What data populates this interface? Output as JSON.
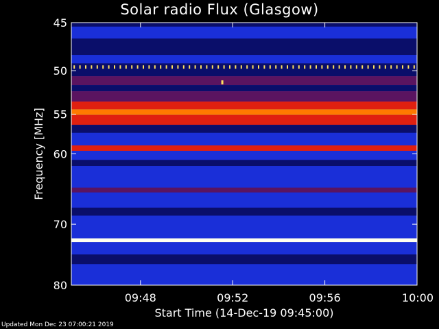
{
  "page": {
    "footer": "Updated Mon Dec 23 07:00:21 2019"
  },
  "chart_data": {
    "type": "heatmap",
    "title": "Solar radio Flux (Glasgow)",
    "xlabel": "Start Time (14-Dec-19 09:45:00)",
    "ylabel": "Frequency [MHz]",
    "xlim_minutes_after_0945": [
      0,
      15
    ],
    "ylim_mhz": [
      45,
      80
    ],
    "y_scale": "log",
    "x_ticks": [
      {
        "minutes": 3,
        "label": "09:48"
      },
      {
        "minutes": 7,
        "label": "09:52"
      },
      {
        "minutes": 11,
        "label": "09:56"
      },
      {
        "minutes": 15,
        "label": "10:00"
      }
    ],
    "y_ticks": [
      {
        "mhz": 45,
        "label": "45"
      },
      {
        "mhz": 50,
        "label": "50"
      },
      {
        "mhz": 55,
        "label": "55"
      },
      {
        "mhz": 60,
        "label": "60"
      },
      {
        "mhz": 70,
        "label": "70"
      },
      {
        "mhz": 80,
        "label": "80"
      }
    ],
    "colors": {
      "background": "#1a2fd8",
      "dark": "#0a0e6a",
      "purple": "#5a1460",
      "red": "#e02010",
      "orange": "#ff7a00",
      "yellow": "#ffe060",
      "white": "#fffff0"
    },
    "bands": [
      {
        "f0": 45.0,
        "f1": 45.4,
        "color": "dark"
      },
      {
        "f0": 45.4,
        "f1": 46.6,
        "color": "background"
      },
      {
        "f0": 46.6,
        "f1": 48.3,
        "color": "dark"
      },
      {
        "f0": 48.3,
        "f1": 49.2,
        "color": "background"
      },
      {
        "f0": 49.2,
        "f1": 50.6,
        "color": "dark"
      },
      {
        "f0": 50.6,
        "f1": 51.6,
        "color": "purple"
      },
      {
        "f0": 51.6,
        "f1": 52.3,
        "color": "dark"
      },
      {
        "f0": 52.3,
        "f1": 53.5,
        "color": "purple"
      },
      {
        "f0": 53.5,
        "f1": 54.4,
        "color": "red"
      },
      {
        "f0": 54.4,
        "f1": 55.1,
        "color": "orange"
      },
      {
        "f0": 55.1,
        "f1": 56.3,
        "color": "red"
      },
      {
        "f0": 56.3,
        "f1": 57.3,
        "color": "dark"
      },
      {
        "f0": 57.3,
        "f1": 58.9,
        "color": "background"
      },
      {
        "f0": 58.9,
        "f1": 59.6,
        "color": "red"
      },
      {
        "f0": 59.6,
        "f1": 60.8,
        "color": "background"
      },
      {
        "f0": 60.8,
        "f1": 61.6,
        "color": "dark"
      },
      {
        "f0": 61.6,
        "f1": 64.6,
        "color": "background"
      },
      {
        "f0": 64.6,
        "f1": 65.3,
        "color": "purple"
      },
      {
        "f0": 65.3,
        "f1": 67.5,
        "color": "background"
      },
      {
        "f0": 67.5,
        "f1": 68.7,
        "color": "dark"
      },
      {
        "f0": 68.7,
        "f1": 72.2,
        "color": "background"
      },
      {
        "f0": 72.2,
        "f1": 72.8,
        "color": "white"
      },
      {
        "f0": 72.8,
        "f1": 74.8,
        "color": "background"
      },
      {
        "f0": 74.8,
        "f1": 76.4,
        "color": "dark"
      },
      {
        "f0": 76.4,
        "f1": 80.0,
        "color": "background"
      }
    ],
    "pulse_train": {
      "mhz": 49.6,
      "count": 60,
      "color": "yellow"
    },
    "burst_points": [
      {
        "minutes": 6.55,
        "mhz": 51.3,
        "color": "yellow"
      }
    ]
  }
}
